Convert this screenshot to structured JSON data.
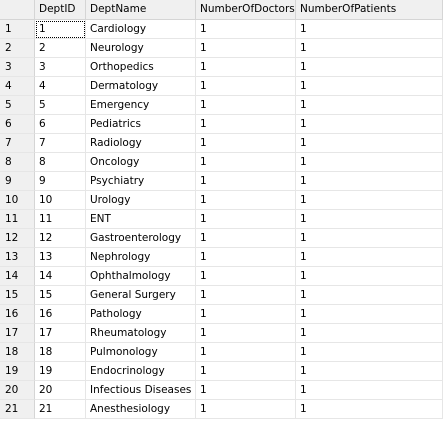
{
  "headers": [
    "",
    "DeptID",
    "DeptName",
    "NumberOfDoctors",
    "NumberOfPatients"
  ],
  "rows": [
    {
      "n": "1",
      "id": "1",
      "name": "Cardiology",
      "doctors": "1",
      "patients": "1"
    },
    {
      "n": "2",
      "id": "2",
      "name": "Neurology",
      "doctors": "1",
      "patients": "1"
    },
    {
      "n": "3",
      "id": "3",
      "name": "Orthopedics",
      "doctors": "1",
      "patients": "1"
    },
    {
      "n": "4",
      "id": "4",
      "name": "Dermatology",
      "doctors": "1",
      "patients": "1"
    },
    {
      "n": "5",
      "id": "5",
      "name": "Emergency",
      "doctors": "1",
      "patients": "1"
    },
    {
      "n": "6",
      "id": "6",
      "name": "Pediatrics",
      "doctors": "1",
      "patients": "1"
    },
    {
      "n": "7",
      "id": "7",
      "name": "Radiology",
      "doctors": "1",
      "patients": "1"
    },
    {
      "n": "8",
      "id": "8",
      "name": "Oncology",
      "doctors": "1",
      "patients": "1"
    },
    {
      "n": "9",
      "id": "9",
      "name": "Psychiatry",
      "doctors": "1",
      "patients": "1"
    },
    {
      "n": "10",
      "id": "10",
      "name": "Urology",
      "doctors": "1",
      "patients": "1"
    },
    {
      "n": "11",
      "id": "11",
      "name": "ENT",
      "doctors": "1",
      "patients": "1"
    },
    {
      "n": "12",
      "id": "12",
      "name": "Gastroenterology",
      "doctors": "1",
      "patients": "1"
    },
    {
      "n": "13",
      "id": "13",
      "name": "Nephrology",
      "doctors": "1",
      "patients": "1"
    },
    {
      "n": "14",
      "id": "14",
      "name": "Ophthalmology",
      "doctors": "1",
      "patients": "1"
    },
    {
      "n": "15",
      "id": "15",
      "name": "General Surgery",
      "doctors": "1",
      "patients": "1"
    },
    {
      "n": "16",
      "id": "16",
      "name": "Pathology",
      "doctors": "1",
      "patients": "1"
    },
    {
      "n": "17",
      "id": "17",
      "name": "Rheumatology",
      "doctors": "1",
      "patients": "1"
    },
    {
      "n": "18",
      "id": "18",
      "name": "Pulmonology",
      "doctors": "1",
      "patients": "1"
    },
    {
      "n": "19",
      "id": "19",
      "name": "Endocrinology",
      "doctors": "1",
      "patients": "1"
    },
    {
      "n": "20",
      "id": "20",
      "name": "Infectious Diseases",
      "doctors": "1",
      "patients": "1"
    },
    {
      "n": "21",
      "id": "21",
      "name": "Anesthesiology",
      "doctors": "1",
      "patients": "1"
    }
  ],
  "selected": {
    "row": 0,
    "column": "id"
  }
}
